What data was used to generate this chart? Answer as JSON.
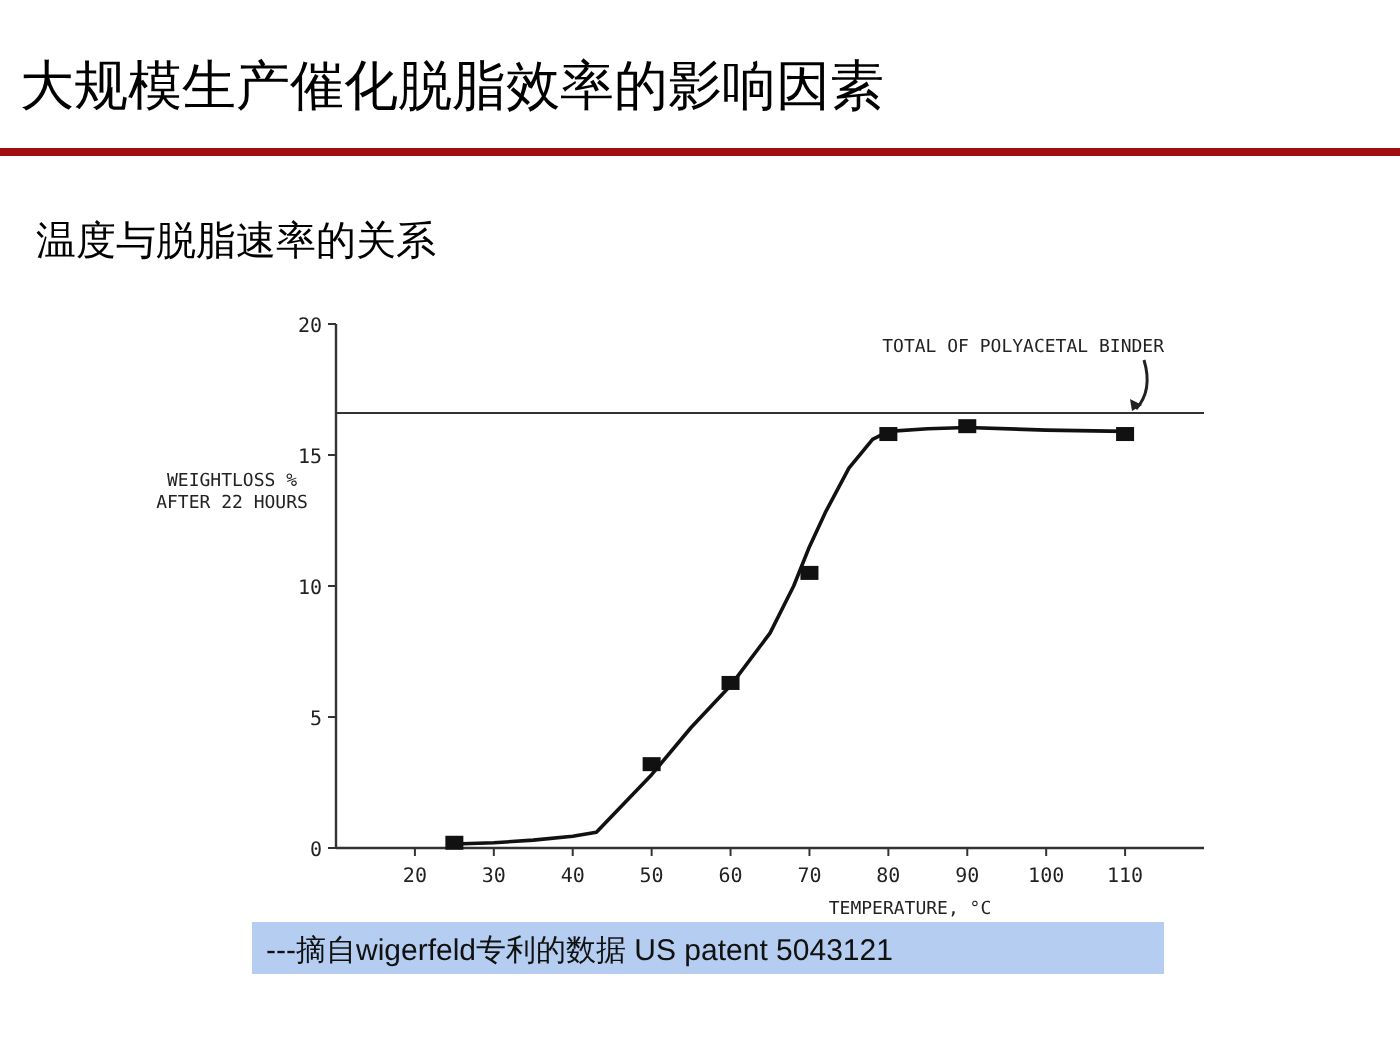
{
  "chart_data": {
    "type": "line",
    "title": "大规模生产催化脱脂效率的影响因素",
    "subtitle": "温度与脱脂速率的关系",
    "xlabel": "TEMPERATURE, °C",
    "ylabel": "WEIGHTLOSS %\nAFTER 22 HOURS",
    "series": [
      {
        "type": "line",
        "color": "#111111",
        "marker": "none",
        "x": [
          25,
          30,
          35,
          40,
          43,
          50,
          55,
          60,
          65,
          68,
          70,
          72,
          75,
          78,
          80,
          85,
          90,
          100,
          110
        ],
        "values": [
          0.15,
          0.2,
          0.3,
          0.45,
          0.6,
          2.8,
          4.6,
          6.2,
          8.2,
          10,
          11.5,
          12.8,
          14.5,
          15.6,
          15.9,
          16,
          16.05,
          15.95,
          15.9
        ]
      },
      {
        "type": "scatter",
        "color": "#111111",
        "marker": "square",
        "x": [
          25,
          50,
          60,
          70,
          80,
          90,
          110
        ],
        "values": [
          0.2,
          3.2,
          6.3,
          10.5,
          15.8,
          16.1,
          15.8
        ]
      }
    ],
    "xlim": [
      10,
      120
    ],
    "ylim": [
      0,
      20
    ],
    "xticks": [
      20,
      30,
      40,
      50,
      60,
      70,
      80,
      90,
      100,
      110
    ],
    "yticks": [
      0,
      5,
      10,
      15,
      20
    ],
    "ref_lines": [
      {
        "axis": "y",
        "value": 16.6,
        "label": "TOTAL OF POLYACETAL BINDER",
        "color": "#333333"
      }
    ],
    "annotations": [
      "---摘自wigerfeld专利的数据 US patent 5043121"
    ],
    "grid": false
  }
}
